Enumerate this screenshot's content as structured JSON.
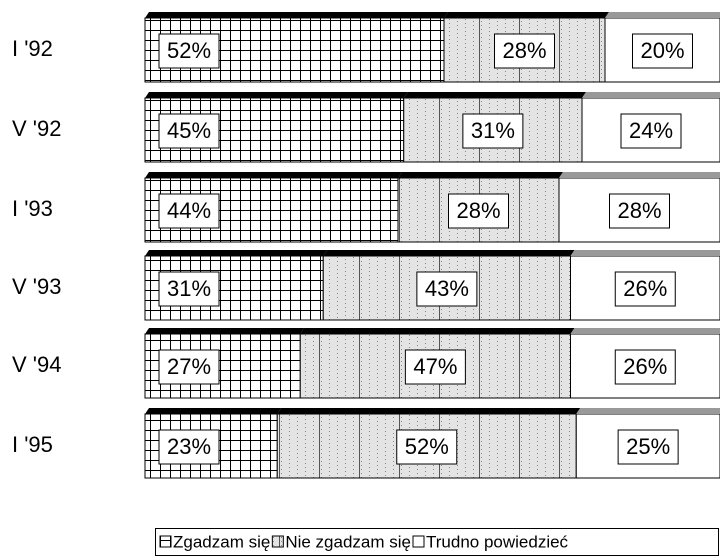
{
  "chart_data": {
    "type": "stacked_bar_horizontal",
    "categories": [
      "I '92",
      "V '92",
      "I '93",
      "V '93",
      "V '94",
      "I '95"
    ],
    "series": [
      {
        "name": "Zgadzam się",
        "values": [
          52,
          45,
          44,
          31,
          27,
          23
        ],
        "value_labels": [
          "52%",
          "45%",
          "44%",
          "31%",
          "27%",
          "23%"
        ]
      },
      {
        "name": "Nie zgadzam się",
        "values": [
          28,
          31,
          28,
          43,
          47,
          52
        ],
        "value_labels": [
          "28%",
          "31%",
          "28%",
          "43%",
          "47%",
          "52%"
        ]
      },
      {
        "name": "Trudno powiedzieć",
        "values": [
          20,
          24,
          28,
          26,
          26,
          25
        ],
        "value_labels": [
          "20%",
          "24%",
          "28%",
          "26%",
          "26%",
          "25%"
        ]
      }
    ],
    "xlim": [
      0,
      100
    ],
    "legend": "bottom"
  }
}
